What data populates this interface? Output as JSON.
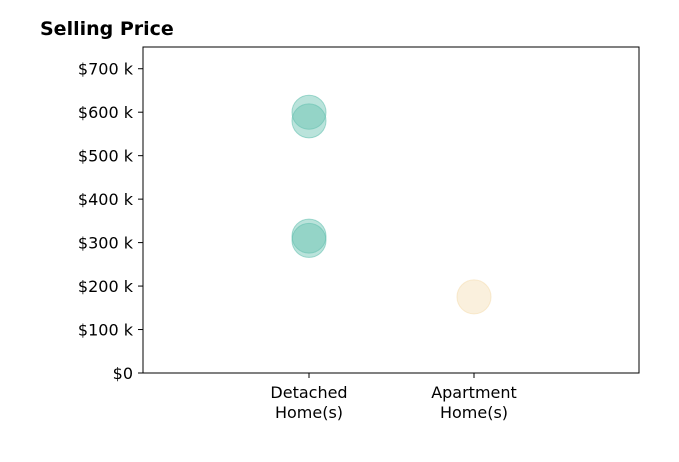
{
  "chart_data": {
    "type": "scatter",
    "title": "Selling Price",
    "xlabel": "",
    "ylabel": "",
    "categories": [
      "Detached Home(s)",
      "Apartment Home(s)"
    ],
    "category_lines": [
      [
        "Detached",
        "Home(s)"
      ],
      [
        "Apartment",
        "Home(s)"
      ]
    ],
    "yticks": [
      "$0",
      "$100 k",
      "$200 k",
      "$300 k",
      "$400 k",
      "$500 k",
      "$600 k",
      "$700 k"
    ],
    "ylim": [
      0,
      750000
    ],
    "grid": false,
    "points": [
      {
        "category": "Detached Home(s)",
        "y": 600000
      },
      {
        "category": "Detached Home(s)",
        "y": 580000
      },
      {
        "category": "Detached Home(s)",
        "y": 315000
      },
      {
        "category": "Detached Home(s)",
        "y": 305000
      },
      {
        "category": "Apartment Home(s)",
        "y": 175000
      }
    ],
    "colors": {
      "Detached Home(s)": "#66c2b0",
      "Apartment Home(s)": "#f5deb3"
    }
  }
}
